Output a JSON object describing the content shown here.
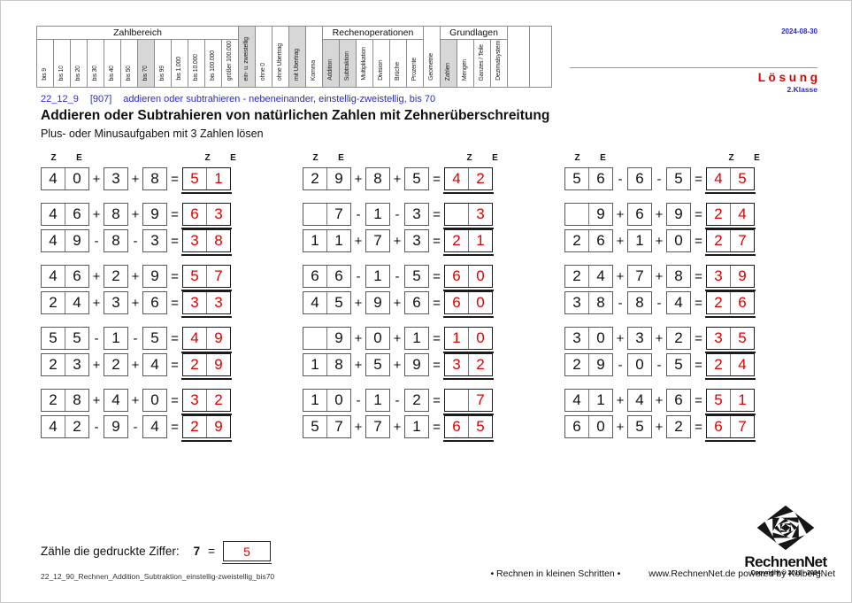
{
  "page": {
    "date": "2024-08-30",
    "solution_label": "L ö s u n g",
    "grade": "2.Klasse",
    "topic_id": "22_12_9",
    "topic_code": "[907]",
    "topic_desc": "addieren oder subtrahieren - nebeneinander, einstellig-zweistellig, bis 70",
    "title": "Addieren oder Subtrahieren von natürlichen Zahlen mit Zehnerüberschreitung",
    "subtitle": "Plus- oder Minusaufgaben mit 3 Zahlen lösen"
  },
  "header_table": {
    "segments": [
      {
        "type": "group",
        "label": "Zahlbereich",
        "cols": [
          {
            "label": "bis 9"
          },
          {
            "label": "bis 10"
          },
          {
            "label": "bis 20"
          },
          {
            "label": "bis 30"
          },
          {
            "label": "bis 40"
          },
          {
            "label": "bis 50"
          },
          {
            "label": "bis 70",
            "highlight": true
          },
          {
            "label": "bis 99"
          },
          {
            "label": "bis 1.000"
          },
          {
            "label": "bis 10.000"
          },
          {
            "label": "bis 100.000"
          },
          {
            "label": "größer 100.000"
          }
        ]
      },
      {
        "type": "single",
        "col": {
          "label": "ein- u. zweistellig",
          "highlight": true
        }
      },
      {
        "type": "single",
        "col": {
          "label": "ohne 0"
        }
      },
      {
        "type": "single",
        "col": {
          "label": "ohne Übertrag"
        }
      },
      {
        "type": "single",
        "col": {
          "label": "mit Übertrag",
          "highlight": true
        }
      },
      {
        "type": "single",
        "col": {
          "label": "Komma"
        }
      },
      {
        "type": "group",
        "label": "Rechenoperationen",
        "cols": [
          {
            "label": "Addition",
            "highlight": true
          },
          {
            "label": "Subtraktion",
            "highlight": true
          },
          {
            "label": "Multiplikation"
          },
          {
            "label": "Division"
          },
          {
            "label": "Brüche"
          },
          {
            "label": "Prozente"
          }
        ]
      },
      {
        "type": "single",
        "col": {
          "label": "Geometrie"
        }
      },
      {
        "type": "group",
        "label": "Grundlagen",
        "cols": [
          {
            "label": "Zahlen",
            "highlight": true
          },
          {
            "label": "Mengen"
          },
          {
            "label": "Ganzes / Teile"
          },
          {
            "label": "Dezimalsystem"
          }
        ]
      },
      {
        "type": "single",
        "col": {
          "label": ""
        }
      },
      {
        "type": "single",
        "col": {
          "label": ""
        }
      }
    ]
  },
  "place_value_header": {
    "tens": "Z",
    "ones": "E"
  },
  "problems": {
    "equals_sign": "=",
    "columns": [
      {
        "rows": [
          {
            "tens": "4",
            "ones": "0",
            "op1": "+",
            "n1": "3",
            "op2": "+",
            "n2": "8",
            "res_tens": "5",
            "res_ones": "1"
          },
          {
            "tens": "4",
            "ones": "6",
            "op1": "+",
            "n1": "8",
            "op2": "+",
            "n2": "9",
            "res_tens": "6",
            "res_ones": "3"
          },
          {
            "tens": "4",
            "ones": "9",
            "op1": "-",
            "n1": "8",
            "op2": "-",
            "n2": "3",
            "res_tens": "3",
            "res_ones": "8"
          },
          {
            "tens": "4",
            "ones": "6",
            "op1": "+",
            "n1": "2",
            "op2": "+",
            "n2": "9",
            "res_tens": "5",
            "res_ones": "7"
          },
          {
            "tens": "2",
            "ones": "4",
            "op1": "+",
            "n1": "3",
            "op2": "+",
            "n2": "6",
            "res_tens": "3",
            "res_ones": "3"
          },
          {
            "tens": "5",
            "ones": "5",
            "op1": "-",
            "n1": "1",
            "op2": "-",
            "n2": "5",
            "res_tens": "4",
            "res_ones": "9"
          },
          {
            "tens": "2",
            "ones": "3",
            "op1": "+",
            "n1": "2",
            "op2": "+",
            "n2": "4",
            "res_tens": "2",
            "res_ones": "9"
          },
          {
            "tens": "2",
            "ones": "8",
            "op1": "+",
            "n1": "4",
            "op2": "+",
            "n2": "0",
            "res_tens": "3",
            "res_ones": "2"
          },
          {
            "tens": "4",
            "ones": "2",
            "op1": "-",
            "n1": "9",
            "op2": "-",
            "n2": "4",
            "res_tens": "2",
            "res_ones": "9"
          }
        ]
      },
      {
        "rows": [
          {
            "tens": "2",
            "ones": "9",
            "op1": "+",
            "n1": "8",
            "op2": "+",
            "n2": "5",
            "res_tens": "4",
            "res_ones": "2"
          },
          {
            "tens": "",
            "ones": "7",
            "op1": "-",
            "n1": "1",
            "op2": "-",
            "n2": "3",
            "res_tens": "",
            "res_ones": "3"
          },
          {
            "tens": "1",
            "ones": "1",
            "op1": "+",
            "n1": "7",
            "op2": "+",
            "n2": "3",
            "res_tens": "2",
            "res_ones": "1"
          },
          {
            "tens": "6",
            "ones": "6",
            "op1": "-",
            "n1": "1",
            "op2": "-",
            "n2": "5",
            "res_tens": "6",
            "res_ones": "0"
          },
          {
            "tens": "4",
            "ones": "5",
            "op1": "+",
            "n1": "9",
            "op2": "+",
            "n2": "6",
            "res_tens": "6",
            "res_ones": "0"
          },
          {
            "tens": "",
            "ones": "9",
            "op1": "+",
            "n1": "0",
            "op2": "+",
            "n2": "1",
            "res_tens": "1",
            "res_ones": "0"
          },
          {
            "tens": "1",
            "ones": "8",
            "op1": "+",
            "n1": "5",
            "op2": "+",
            "n2": "9",
            "res_tens": "3",
            "res_ones": "2"
          },
          {
            "tens": "1",
            "ones": "0",
            "op1": "-",
            "n1": "1",
            "op2": "-",
            "n2": "2",
            "res_tens": "",
            "res_ones": "7"
          },
          {
            "tens": "5",
            "ones": "7",
            "op1": "+",
            "n1": "7",
            "op2": "+",
            "n2": "1",
            "res_tens": "6",
            "res_ones": "5"
          }
        ]
      },
      {
        "rows": [
          {
            "tens": "5",
            "ones": "6",
            "op1": "-",
            "n1": "6",
            "op2": "-",
            "n2": "5",
            "res_tens": "4",
            "res_ones": "5"
          },
          {
            "tens": "",
            "ones": "9",
            "op1": "+",
            "n1": "6",
            "op2": "+",
            "n2": "9",
            "res_tens": "2",
            "res_ones": "4"
          },
          {
            "tens": "2",
            "ones": "6",
            "op1": "+",
            "n1": "1",
            "op2": "+",
            "n2": "0",
            "res_tens": "2",
            "res_ones": "7"
          },
          {
            "tens": "2",
            "ones": "4",
            "op1": "+",
            "n1": "7",
            "op2": "+",
            "n2": "8",
            "res_tens": "3",
            "res_ones": "9"
          },
          {
            "tens": "3",
            "ones": "8",
            "op1": "-",
            "n1": "8",
            "op2": "-",
            "n2": "4",
            "res_tens": "2",
            "res_ones": "6"
          },
          {
            "tens": "3",
            "ones": "0",
            "op1": "+",
            "n1": "3",
            "op2": "+",
            "n2": "2",
            "res_tens": "3",
            "res_ones": "5"
          },
          {
            "tens": "2",
            "ones": "9",
            "op1": "-",
            "n1": "0",
            "op2": "-",
            "n2": "5",
            "res_tens": "2",
            "res_ones": "4"
          },
          {
            "tens": "4",
            "ones": "1",
            "op1": "+",
            "n1": "4",
            "op2": "+",
            "n2": "6",
            "res_tens": "5",
            "res_ones": "1"
          },
          {
            "tens": "6",
            "ones": "0",
            "op1": "+",
            "n1": "5",
            "op2": "+",
            "n2": "2",
            "res_tens": "6",
            "res_ones": "7"
          }
        ]
      }
    ]
  },
  "bottom_task": {
    "label": "Zähle die gedruckte Ziffer:",
    "digit": "7",
    "equals": "=",
    "answer": "5"
  },
  "footer": {
    "file_name": "22_12_90_Rechnen_Addition_Subtraktion_einstellig-zweistellig_bis70",
    "slogan": "• Rechnen in kleinen Schritten •",
    "site": "www.RechnenNet.de powered by KolbergNet",
    "logo_text": "RechnenNet",
    "copyright": "Copyright © 2011 - 2024"
  },
  "colors": {
    "accent_red": "#e10000",
    "accent_blue": "#2a2ace",
    "highlight_gray": "#d7d7d7"
  }
}
